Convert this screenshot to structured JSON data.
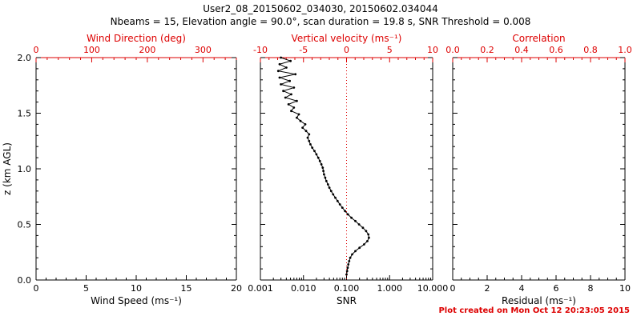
{
  "title": "User2_08_20150602_034030, 20150602.034044",
  "subtitle": "Nbeams = 15, Elevation angle = 90.0°, scan duration = 19.8 s, SNR Threshold = 0.008",
  "footer": "Plot created on Mon Oct 12 20:23:05 2015",
  "colors": {
    "axis": "#000000",
    "secondary": "#dd0000",
    "data": "#000000",
    "background": "#ffffff"
  },
  "chart_data": [
    {
      "type": "scatter",
      "panel": "wind-speed",
      "xlabel": "Wind Speed (ms⁻¹)",
      "xlim": [
        0,
        20
      ],
      "xticks": [
        0,
        5,
        10,
        15,
        20
      ],
      "xtick_labels": [
        "0",
        "5",
        "10",
        "15",
        "20"
      ],
      "xminor": 1,
      "top_axis": {
        "label": "Wind Direction (deg)",
        "lim": [
          0,
          360
        ],
        "ticks": [
          0,
          100,
          200,
          300
        ],
        "tick_labels": [
          "0",
          "100",
          "200",
          "300"
        ],
        "minor": 20
      },
      "ylabel": "z (km AGL)",
      "ylim": [
        0,
        2
      ],
      "yticks": [
        0,
        0.5,
        1,
        1.5,
        2
      ],
      "ytick_labels": [
        "0.0",
        "0.5",
        "1.0",
        "1.5",
        "2.0"
      ],
      "yminor": 0.1,
      "grid": false,
      "series": []
    },
    {
      "type": "line",
      "panel": "snr",
      "xlabel": "SNR",
      "xscale": "log",
      "xlim": [
        0.001,
        10
      ],
      "xticks": [
        0.001,
        0.01,
        0.1,
        1,
        10
      ],
      "xtick_labels": [
        "0.001",
        "0.010",
        "0.100",
        "1.000",
        "10.000"
      ],
      "top_axis": {
        "label": "Vertical velocity (ms⁻¹)",
        "lim": [
          -10,
          10
        ],
        "ticks": [
          -10,
          -5,
          0,
          5,
          10
        ],
        "tick_labels": [
          "-10",
          "-5",
          "0",
          "5",
          "10"
        ],
        "minor": 1
      },
      "ylim": [
        0,
        2
      ],
      "yticks": [
        0,
        0.5,
        1,
        1.5,
        2
      ],
      "yminor": 0.1,
      "grid": false,
      "refline_x": 0.1,
      "series": [
        {
          "name": "snr-profile",
          "z": [
            0.05,
            0.08,
            0.11,
            0.14,
            0.17,
            0.2,
            0.23,
            0.26,
            0.29,
            0.32,
            0.35,
            0.38,
            0.41,
            0.44,
            0.47,
            0.5,
            0.53,
            0.56,
            0.59,
            0.62,
            0.65,
            0.68,
            0.71,
            0.74,
            0.77,
            0.8,
            0.83,
            0.86,
            0.89,
            0.92,
            0.95,
            0.98,
            1.01,
            1.04,
            1.07,
            1.1,
            1.13,
            1.16,
            1.19,
            1.22,
            1.25,
            1.28,
            1.31,
            1.34,
            1.37,
            1.4,
            1.43,
            1.46,
            1.49,
            1.52,
            1.55,
            1.58,
            1.61,
            1.64,
            1.67,
            1.7,
            1.73,
            1.76,
            1.79,
            1.82,
            1.85,
            1.88,
            1.91,
            1.94,
            1.97,
            2.0
          ],
          "snr": [
            0.1,
            0.103,
            0.106,
            0.11,
            0.115,
            0.122,
            0.135,
            0.16,
            0.2,
            0.255,
            0.305,
            0.33,
            0.32,
            0.285,
            0.24,
            0.195,
            0.16,
            0.13,
            0.108,
            0.092,
            0.08,
            0.07,
            0.062,
            0.055,
            0.049,
            0.044,
            0.04,
            0.037,
            0.034,
            0.032,
            0.03,
            0.029,
            0.028,
            0.026,
            0.024,
            0.022,
            0.02,
            0.018,
            0.016,
            0.0145,
            0.0135,
            0.0125,
            0.0135,
            0.0115,
            0.0095,
            0.011,
            0.0085,
            0.007,
            0.0078,
            0.0052,
            0.006,
            0.0045,
            0.007,
            0.0038,
            0.0052,
            0.0034,
            0.006,
            0.003,
            0.0048,
            0.0028,
            0.0065,
            0.0026,
            0.004,
            0.0028,
            0.005,
            0.003
          ]
        }
      ]
    },
    {
      "type": "scatter",
      "panel": "residual",
      "xlabel": "Residual (ms⁻¹)",
      "xlim": [
        0,
        10
      ],
      "xticks": [
        0,
        2,
        4,
        6,
        8,
        10
      ],
      "xtick_labels": [
        "0",
        "2",
        "4",
        "6",
        "8",
        "10"
      ],
      "xminor": 0.5,
      "top_axis": {
        "label": "Correlation",
        "lim": [
          0,
          1
        ],
        "ticks": [
          0,
          0.2,
          0.4,
          0.6,
          0.8,
          1
        ],
        "tick_labels": [
          "0.0",
          "0.2",
          "0.4",
          "0.6",
          "0.8",
          "1.0"
        ],
        "minor": 0.05
      },
      "ylim": [
        0,
        2
      ],
      "yticks": [
        0,
        0.5,
        1,
        1.5,
        2
      ],
      "yminor": 0.1,
      "grid": false,
      "series": []
    }
  ]
}
